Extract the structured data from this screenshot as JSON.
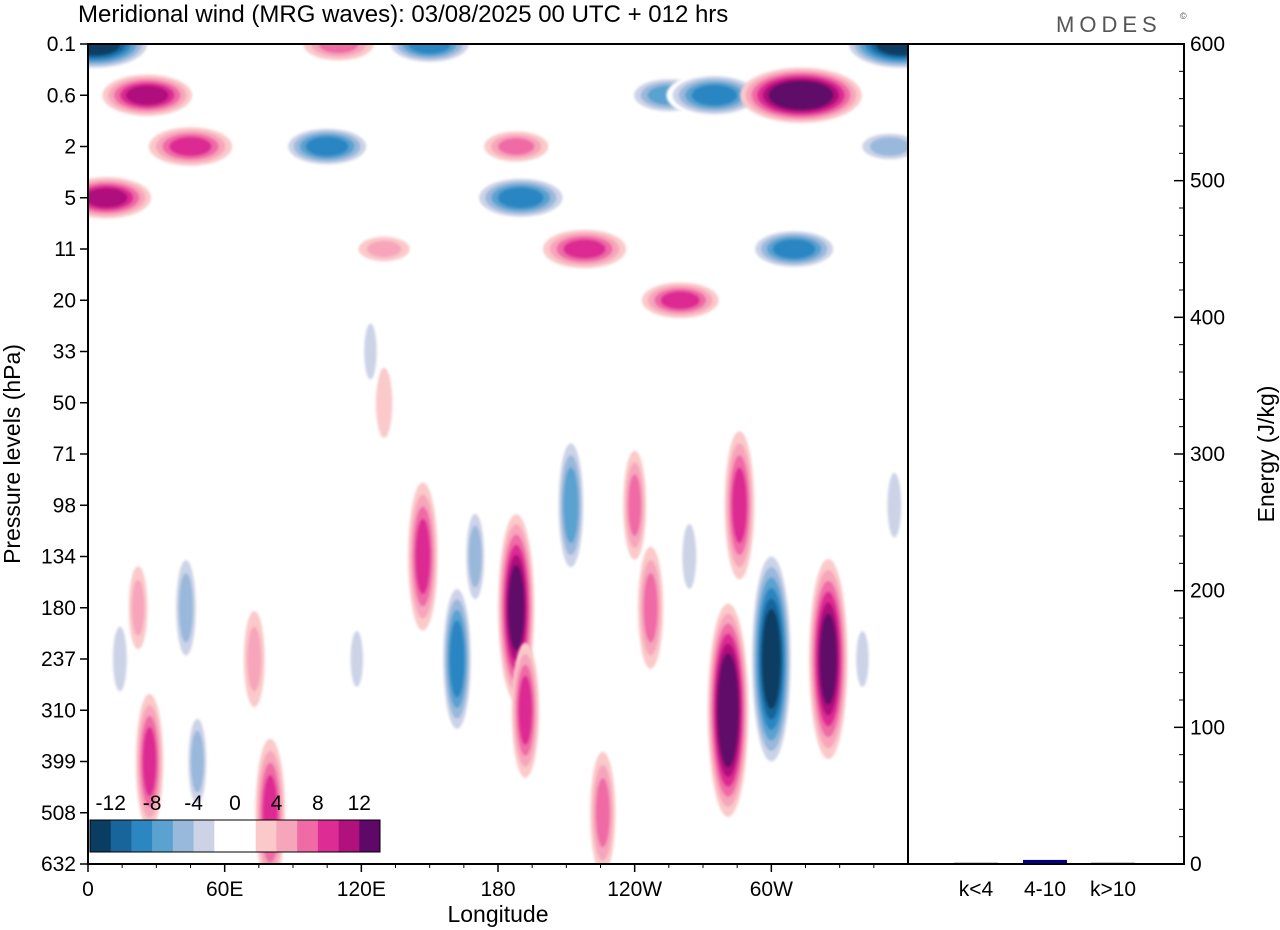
{
  "brand": "MODES",
  "brand_mark": "©",
  "chart_data": [
    {
      "type": "heatmap",
      "title": "Meridional wind (MRG waves):  03/08/2025  00 UTC  + 012 hrs",
      "xlabel": "Longitude",
      "ylabel": "Pressure levels (hPa)",
      "x_ticks": [
        "0",
        "60E",
        "120E",
        "180",
        "120W",
        "60W"
      ],
      "x_tick_values": [
        0,
        60,
        120,
        180,
        240,
        300
      ],
      "xlim": [
        0,
        360
      ],
      "y_ticks": [
        "0.1",
        "0.6",
        "2",
        "5",
        "11",
        "20",
        "33",
        "50",
        "71",
        "98",
        "134",
        "180",
        "237",
        "310",
        "399",
        "508",
        "632"
      ],
      "colorbar": {
        "levels": [
          -14,
          -12,
          -10,
          -8,
          -6,
          -4,
          -2,
          2,
          4,
          6,
          8,
          10,
          12,
          14
        ],
        "labels": [
          "-12",
          "-8",
          "-4",
          "0",
          "4",
          "8",
          "12"
        ],
        "label_values": [
          -12,
          -8,
          -4,
          0,
          4,
          8,
          12
        ],
        "colors": [
          "#0a3d62",
          "#17659a",
          "#2b86c2",
          "#5aa2cf",
          "#98b8dc",
          "#ccd3e7",
          "#ffffff",
          "#ffffff",
          "#fbc9c9",
          "#f7a5bb",
          "#f06aa6",
          "#dd2c93",
          "#b0117d",
          "#5f0868"
        ]
      },
      "features": [
        {
          "lon": 14,
          "level": "237",
          "value": -4
        },
        {
          "lon": 22,
          "level": "180",
          "value": 3
        },
        {
          "lon": 27,
          "level": "399",
          "value": 7
        },
        {
          "lon": 43,
          "level": "180",
          "value": -6
        },
        {
          "lon": 48,
          "level": "399",
          "value": -5
        },
        {
          "lon": 73,
          "level": "237",
          "value": 4
        },
        {
          "lon": 80,
          "level": "508",
          "value": 8
        },
        {
          "lon": 118,
          "level": "237",
          "value": -3
        },
        {
          "lon": 147,
          "level": "134",
          "value": 8
        },
        {
          "lon": 162,
          "level": "237",
          "value": -9
        },
        {
          "lon": 170,
          "level": "134",
          "value": -5
        },
        {
          "lon": 188,
          "level": "180",
          "value": 11
        },
        {
          "lon": 192,
          "level": "310",
          "value": 7
        },
        {
          "lon": 212,
          "level": "98",
          "value": -8
        },
        {
          "lon": 226,
          "level": "508",
          "value": 6
        },
        {
          "lon": 240,
          "level": "98",
          "value": 5
        },
        {
          "lon": 247,
          "level": "180",
          "value": 6
        },
        {
          "lon": 264,
          "level": "134",
          "value": -4
        },
        {
          "lon": 281,
          "level": "310",
          "value": 13
        },
        {
          "lon": 286,
          "level": "98",
          "value": 8
        },
        {
          "lon": 300,
          "level": "237",
          "value": -14
        },
        {
          "lon": 325,
          "level": "237",
          "value": 12
        },
        {
          "lon": 340,
          "level": "237",
          "value": -3
        },
        {
          "lon": 354,
          "level": "98",
          "value": -4
        },
        {
          "lon": 3,
          "level": "0.1",
          "value": -13
        },
        {
          "lon": 26,
          "level": "0.6",
          "value": 9
        },
        {
          "lon": 45,
          "level": "2",
          "value": 8
        },
        {
          "lon": 8,
          "level": "5",
          "value": 9
        },
        {
          "lon": 105,
          "level": "2",
          "value": -9
        },
        {
          "lon": 110,
          "level": "0.1",
          "value": 6
        },
        {
          "lon": 150,
          "level": "0.1",
          "value": -9
        },
        {
          "lon": 188,
          "level": "2",
          "value": 5
        },
        {
          "lon": 190,
          "level": "5",
          "value": -10
        },
        {
          "lon": 218,
          "level": "11",
          "value": 8
        },
        {
          "lon": 255,
          "level": "0.6",
          "value": -8
        },
        {
          "lon": 275,
          "level": "0.6",
          "value": -10
        },
        {
          "lon": 260,
          "level": "20",
          "value": 7
        },
        {
          "lon": 313,
          "level": "0.6",
          "value": 14
        },
        {
          "lon": 310,
          "level": "11",
          "value": -9
        },
        {
          "lon": 357,
          "level": "0.1",
          "value": -13
        },
        {
          "lon": 352,
          "level": "2",
          "value": -6
        },
        {
          "lon": 130,
          "level": "11",
          "value": 3
        },
        {
          "lon": 130,
          "level": "50",
          "value": 2
        },
        {
          "lon": 124,
          "level": "33",
          "value": -3
        }
      ]
    },
    {
      "type": "bar",
      "categories": [
        "k<4",
        "4-10",
        "k>10"
      ],
      "values": [
        0.6,
        3.0,
        0.5
      ],
      "ylabel": "Energy (J/kg)",
      "ylim": [
        0,
        600
      ],
      "y_ticks": [
        "0",
        "100",
        "200",
        "300",
        "400",
        "500",
        "600"
      ],
      "y_tick_values": [
        0,
        100,
        200,
        300,
        400,
        500,
        600
      ],
      "colors": [
        "#000000",
        "#00008b",
        "#000000"
      ]
    }
  ]
}
